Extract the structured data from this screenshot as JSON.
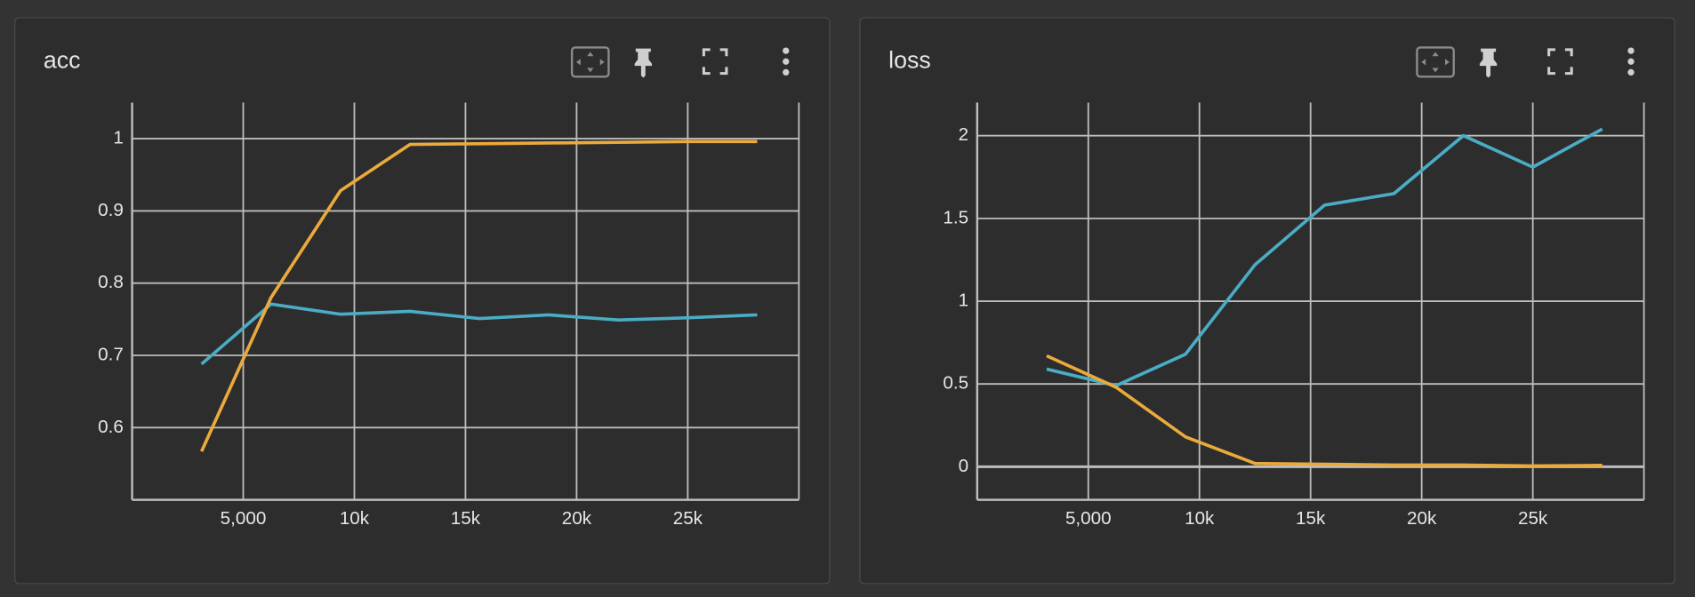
{
  "chart_data": [
    {
      "type": "line",
      "title": "acc",
      "x": [
        3125,
        6250,
        9375,
        12500,
        15625,
        18750,
        21875,
        25000,
        28125
      ],
      "series": [
        {
          "color": "#4aacc5",
          "values": [
            0.688,
            0.771,
            0.757,
            0.761,
            0.751,
            0.756,
            0.749,
            0.752,
            0.756
          ]
        },
        {
          "color": "#eaaa3c",
          "values": [
            0.567,
            0.78,
            0.928,
            0.992,
            0.993,
            0.994,
            0.995,
            0.996,
            0.996
          ]
        }
      ],
      "xlim": [
        0,
        30000
      ],
      "xticks": [
        {
          "value": 5000,
          "label": "5,000"
        },
        {
          "value": 10000,
          "label": "10k"
        },
        {
          "value": 15000,
          "label": "15k"
        },
        {
          "value": 20000,
          "label": "20k"
        },
        {
          "value": 25000,
          "label": "25k"
        }
      ],
      "ylim": [
        0.5,
        1.05
      ],
      "yticks": [
        0.6,
        0.7,
        0.8,
        0.9,
        1
      ],
      "grid": true
    },
    {
      "type": "line",
      "title": "loss",
      "x": [
        3125,
        6250,
        9375,
        12500,
        15625,
        18750,
        21875,
        25000,
        28125
      ],
      "series": [
        {
          "color": "#4aacc5",
          "values": [
            0.59,
            0.49,
            0.68,
            1.22,
            1.58,
            1.65,
            2.0,
            1.81,
            2.04
          ]
        },
        {
          "color": "#eaaa3c",
          "values": [
            0.67,
            0.48,
            0.18,
            0.02,
            0.015,
            0.01,
            0.01,
            0.005,
            0.008
          ]
        }
      ],
      "xlim": [
        0,
        30000
      ],
      "xticks": [
        {
          "value": 5000,
          "label": "5,000"
        },
        {
          "value": 10000,
          "label": "10k"
        },
        {
          "value": 15000,
          "label": "15k"
        },
        {
          "value": 20000,
          "label": "20k"
        },
        {
          "value": 25000,
          "label": "25k"
        }
      ],
      "ylim": [
        -0.2,
        2.2
      ],
      "yticks": [
        0,
        0.5,
        1,
        1.5,
        2
      ],
      "grid": true
    }
  ]
}
